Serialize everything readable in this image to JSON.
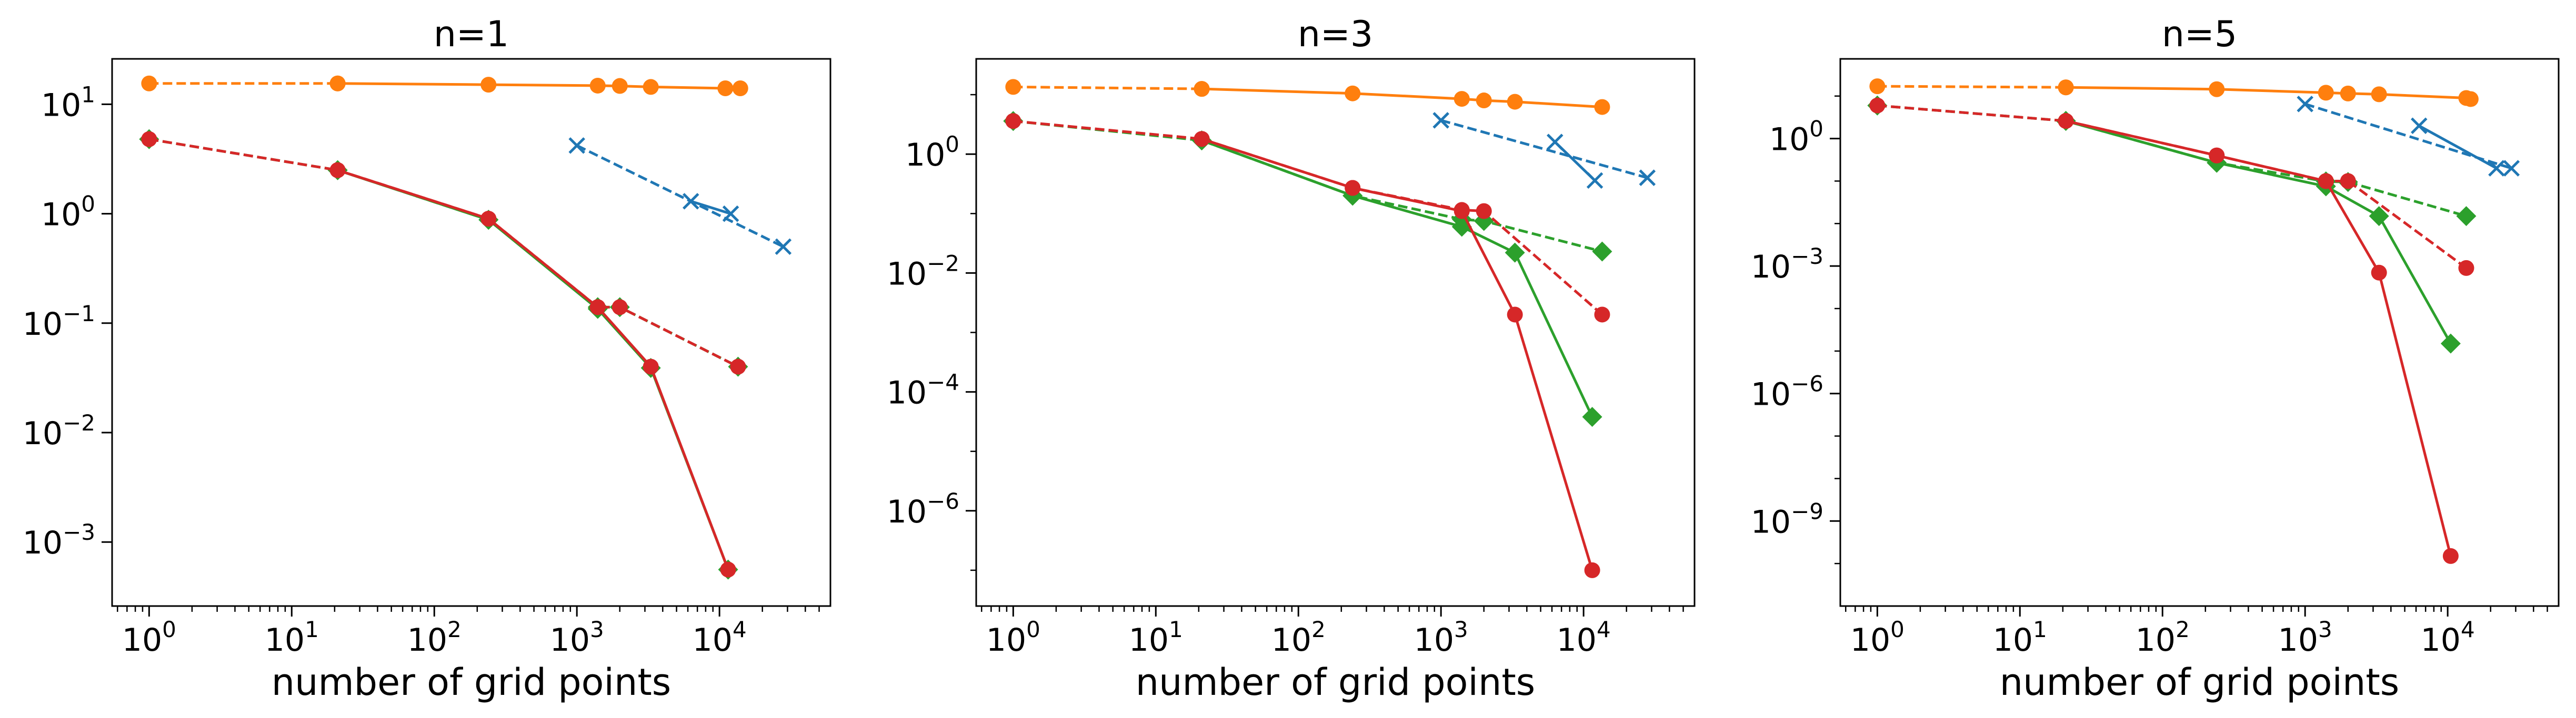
{
  "colors": {
    "blue": "#1f77b4",
    "orange": "#ff7f0e",
    "green": "#2ca02c",
    "red": "#d62728"
  },
  "chart_data": [
    {
      "type": "line",
      "title": "n=1",
      "xlabel": "number of grid points",
      "ylabel": "",
      "xscale": "log",
      "yscale": "log",
      "xlim": [
        0.55,
        60000
      ],
      "ylim": [
        0.00026,
        26
      ],
      "xticks": [
        {
          "value": 1,
          "base": "10",
          "exp": "0"
        },
        {
          "value": 10,
          "base": "10",
          "exp": "1"
        },
        {
          "value": 100,
          "base": "10",
          "exp": "2"
        },
        {
          "value": 1000,
          "base": "10",
          "exp": "3"
        },
        {
          "value": 10000,
          "base": "10",
          "exp": "4"
        }
      ],
      "yticks": [
        {
          "value": 10,
          "base": "10",
          "exp": "1"
        },
        {
          "value": 1,
          "base": "10",
          "exp": "0"
        },
        {
          "value": 0.1,
          "base": "10",
          "exp": "−1"
        },
        {
          "value": 0.01,
          "base": "10",
          "exp": "−2"
        },
        {
          "value": 0.001,
          "base": "10",
          "exp": "−3"
        }
      ],
      "series": [
        {
          "color": "blue",
          "marker": "x",
          "dash": true,
          "x": [
            1000,
            28000
          ],
          "y": [
            4.2,
            0.5
          ]
        },
        {
          "color": "blue",
          "marker": "x",
          "dash": false,
          "x": [
            6300,
            12000
          ],
          "y": [
            1.3,
            1.0
          ]
        },
        {
          "color": "orange",
          "marker": "o",
          "dash": true,
          "x": [
            1,
            21
          ],
          "y": [
            15.5,
            15.5
          ]
        },
        {
          "color": "orange",
          "marker": "o",
          "dash": false,
          "x": [
            21,
            240,
            1400,
            2000,
            3300,
            11000,
            14000
          ],
          "y": [
            15.5,
            15.1,
            14.8,
            14.7,
            14.4,
            14.0,
            14.0
          ]
        },
        {
          "color": "green",
          "marker": "D",
          "dash": true,
          "x": [
            1,
            21,
            240,
            1400,
            2000,
            13500
          ],
          "y": [
            4.8,
            2.5,
            0.88,
            0.14,
            0.14,
            0.04
          ]
        },
        {
          "color": "green",
          "marker": "D",
          "dash": false,
          "x": [
            21,
            240,
            1400,
            3300,
            11500
          ],
          "y": [
            2.5,
            0.88,
            0.135,
            0.039,
            0.00056
          ]
        },
        {
          "color": "red",
          "marker": "o",
          "dash": true,
          "x": [
            1,
            21,
            240,
            1400,
            2000,
            13500
          ],
          "y": [
            4.8,
            2.5,
            0.9,
            0.14,
            0.14,
            0.04
          ]
        },
        {
          "color": "red",
          "marker": "o",
          "dash": false,
          "x": [
            21,
            240,
            1400,
            3300,
            11500
          ],
          "y": [
            2.5,
            0.9,
            0.14,
            0.04,
            0.00056
          ]
        }
      ]
    },
    {
      "type": "line",
      "title": "n=3",
      "xlabel": "number of grid points",
      "ylabel": "",
      "xscale": "log",
      "yscale": "log",
      "xlim": [
        0.55,
        60000
      ],
      "ylim": [
        2.5e-08,
        40
      ],
      "xticks": [
        {
          "value": 1,
          "base": "10",
          "exp": "0"
        },
        {
          "value": 10,
          "base": "10",
          "exp": "1"
        },
        {
          "value": 100,
          "base": "10",
          "exp": "2"
        },
        {
          "value": 1000,
          "base": "10",
          "exp": "3"
        },
        {
          "value": 10000,
          "base": "10",
          "exp": "4"
        }
      ],
      "yticks": [
        {
          "value": 1,
          "base": "10",
          "exp": "0"
        },
        {
          "value": 0.01,
          "base": "10",
          "exp": "−2"
        },
        {
          "value": 0.0001,
          "base": "10",
          "exp": "−4"
        },
        {
          "value": 1e-06,
          "base": "10",
          "exp": "−6"
        }
      ],
      "series": [
        {
          "color": "blue",
          "marker": "x",
          "dash": true,
          "x": [
            1000,
            28000
          ],
          "y": [
            3.7,
            0.4
          ]
        },
        {
          "color": "blue",
          "marker": "x",
          "dash": false,
          "x": [
            6300,
            12000
          ],
          "y": [
            1.6,
            0.36
          ]
        },
        {
          "color": "orange",
          "marker": "o",
          "dash": true,
          "x": [
            1,
            21
          ],
          "y": [
            13.5,
            12.5
          ]
        },
        {
          "color": "orange",
          "marker": "o",
          "dash": false,
          "x": [
            21,
            240,
            1400,
            2000,
            3300,
            13500
          ],
          "y": [
            12.5,
            10.5,
            8.5,
            8.0,
            7.6,
            6.2
          ]
        },
        {
          "color": "green",
          "marker": "D",
          "dash": true,
          "x": [
            1,
            21,
            240,
            1400,
            2000,
            13500
          ],
          "y": [
            3.6,
            1.7,
            0.2,
            0.08,
            0.075,
            0.023
          ]
        },
        {
          "color": "green",
          "marker": "D",
          "dash": false,
          "x": [
            21,
            240,
            1400,
            3300,
            11500
          ],
          "y": [
            1.7,
            0.2,
            0.06,
            0.022,
            3.8e-05
          ]
        },
        {
          "color": "red",
          "marker": "o",
          "dash": true,
          "x": [
            1,
            21,
            240,
            1400,
            2000,
            13500
          ],
          "y": [
            3.6,
            1.8,
            0.27,
            0.115,
            0.11,
            0.002
          ]
        },
        {
          "color": "red",
          "marker": "o",
          "dash": false,
          "x": [
            21,
            240,
            1400,
            3300,
            11500
          ],
          "y": [
            1.8,
            0.27,
            0.11,
            0.002,
            1e-07
          ]
        }
      ]
    },
    {
      "type": "line",
      "title": "n=5",
      "xlabel": "number of grid points",
      "ylabel": "",
      "xscale": "log",
      "yscale": "log",
      "xlim": [
        0.55,
        60000
      ],
      "ylim": [
        1e-11,
        75
      ],
      "xticks": [
        {
          "value": 1,
          "base": "10",
          "exp": "0"
        },
        {
          "value": 10,
          "base": "10",
          "exp": "1"
        },
        {
          "value": 100,
          "base": "10",
          "exp": "2"
        },
        {
          "value": 1000,
          "base": "10",
          "exp": "3"
        },
        {
          "value": 10000,
          "base": "10",
          "exp": "4"
        }
      ],
      "yticks": [
        {
          "value": 1,
          "base": "10",
          "exp": "0"
        },
        {
          "value": 0.001,
          "base": "10",
          "exp": "−3"
        },
        {
          "value": 1e-06,
          "base": "10",
          "exp": "−6"
        },
        {
          "value": 1e-09,
          "base": "10",
          "exp": "−9"
        }
      ],
      "series": [
        {
          "color": "blue",
          "marker": "x",
          "dash": true,
          "x": [
            1000,
            28000
          ],
          "y": [
            6.5,
            0.2
          ]
        },
        {
          "color": "blue",
          "marker": "x",
          "dash": false,
          "x": [
            6300,
            22000
          ],
          "y": [
            2.0,
            0.2
          ]
        },
        {
          "color": "orange",
          "marker": "o",
          "dash": true,
          "x": [
            1,
            21
          ],
          "y": [
            17,
            16
          ]
        },
        {
          "color": "orange",
          "marker": "o",
          "dash": false,
          "x": [
            21,
            240,
            1400,
            2000,
            3300,
            13500,
            14500
          ],
          "y": [
            16,
            14.5,
            12,
            11.5,
            11,
            9,
            8.5
          ]
        },
        {
          "color": "green",
          "marker": "D",
          "dash": true,
          "x": [
            1,
            21,
            240,
            1400,
            2000,
            13500
          ],
          "y": [
            6,
            2.6,
            0.27,
            0.098,
            0.095,
            0.015
          ]
        },
        {
          "color": "green",
          "marker": "D",
          "dash": false,
          "x": [
            21,
            240,
            1400,
            3300,
            10500
          ],
          "y": [
            2.6,
            0.27,
            0.075,
            0.015,
            1.5e-05
          ]
        },
        {
          "color": "red",
          "marker": "o",
          "dash": true,
          "x": [
            1,
            21,
            240,
            1400,
            2000,
            13500
          ],
          "y": [
            6,
            2.6,
            0.4,
            0.1,
            0.1,
            0.0009
          ]
        },
        {
          "color": "red",
          "marker": "o",
          "dash": false,
          "x": [
            21,
            240,
            1400,
            3300,
            10500
          ],
          "y": [
            2.6,
            0.4,
            0.1,
            0.0007,
            1.5e-10
          ]
        }
      ]
    }
  ]
}
